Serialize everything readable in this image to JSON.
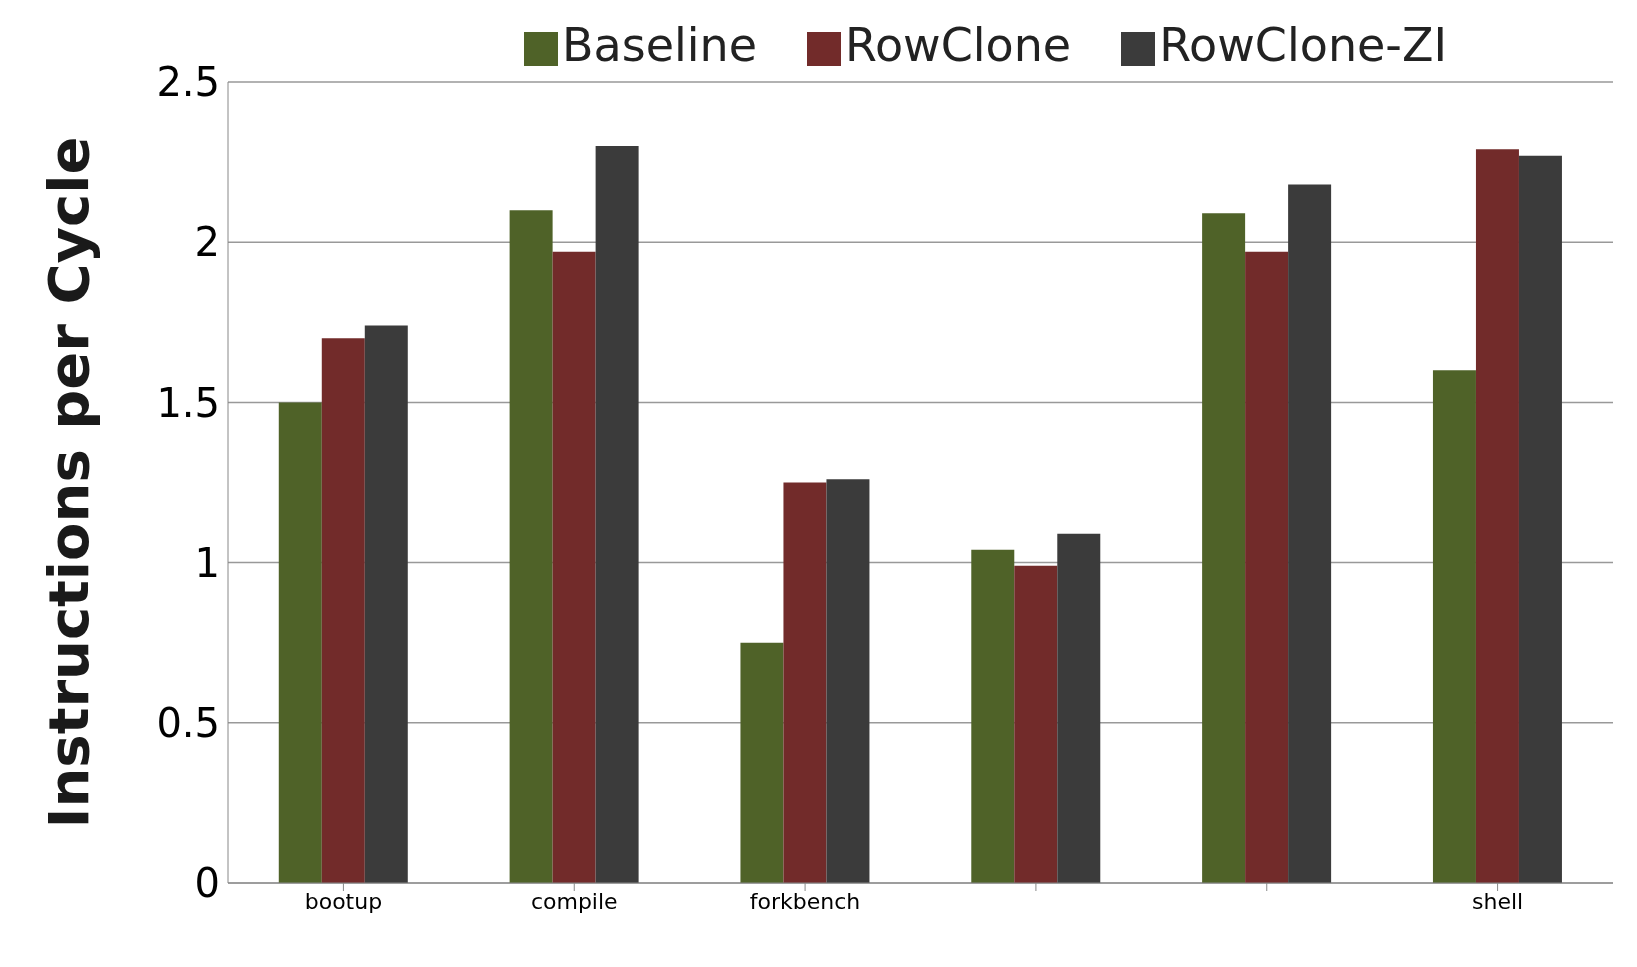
{
  "chart_data": {
    "type": "bar",
    "ylabel": "Instructions per Cycle",
    "categories": [
      "bootup",
      "compile",
      "forkbench",
      null,
      null,
      "shell"
    ],
    "series": [
      {
        "name": "Baseline",
        "color": "#4f6228",
        "values": [
          1.5,
          2.1,
          0.75,
          1.04,
          2.09,
          1.6
        ]
      },
      {
        "name": "RowClone",
        "color": "#722b2a",
        "values": [
          1.7,
          1.97,
          1.25,
          0.99,
          1.97,
          2.29
        ]
      },
      {
        "name": "RowClone-ZI",
        "color": "#3b3b3b",
        "values": [
          1.74,
          2.3,
          1.26,
          1.09,
          2.18,
          2.27
        ]
      }
    ],
    "ylim": [
      0,
      2.5
    ],
    "yticks": [
      0,
      0.5,
      1,
      1.5,
      2,
      2.5
    ],
    "grid": "y",
    "legend": "top"
  }
}
